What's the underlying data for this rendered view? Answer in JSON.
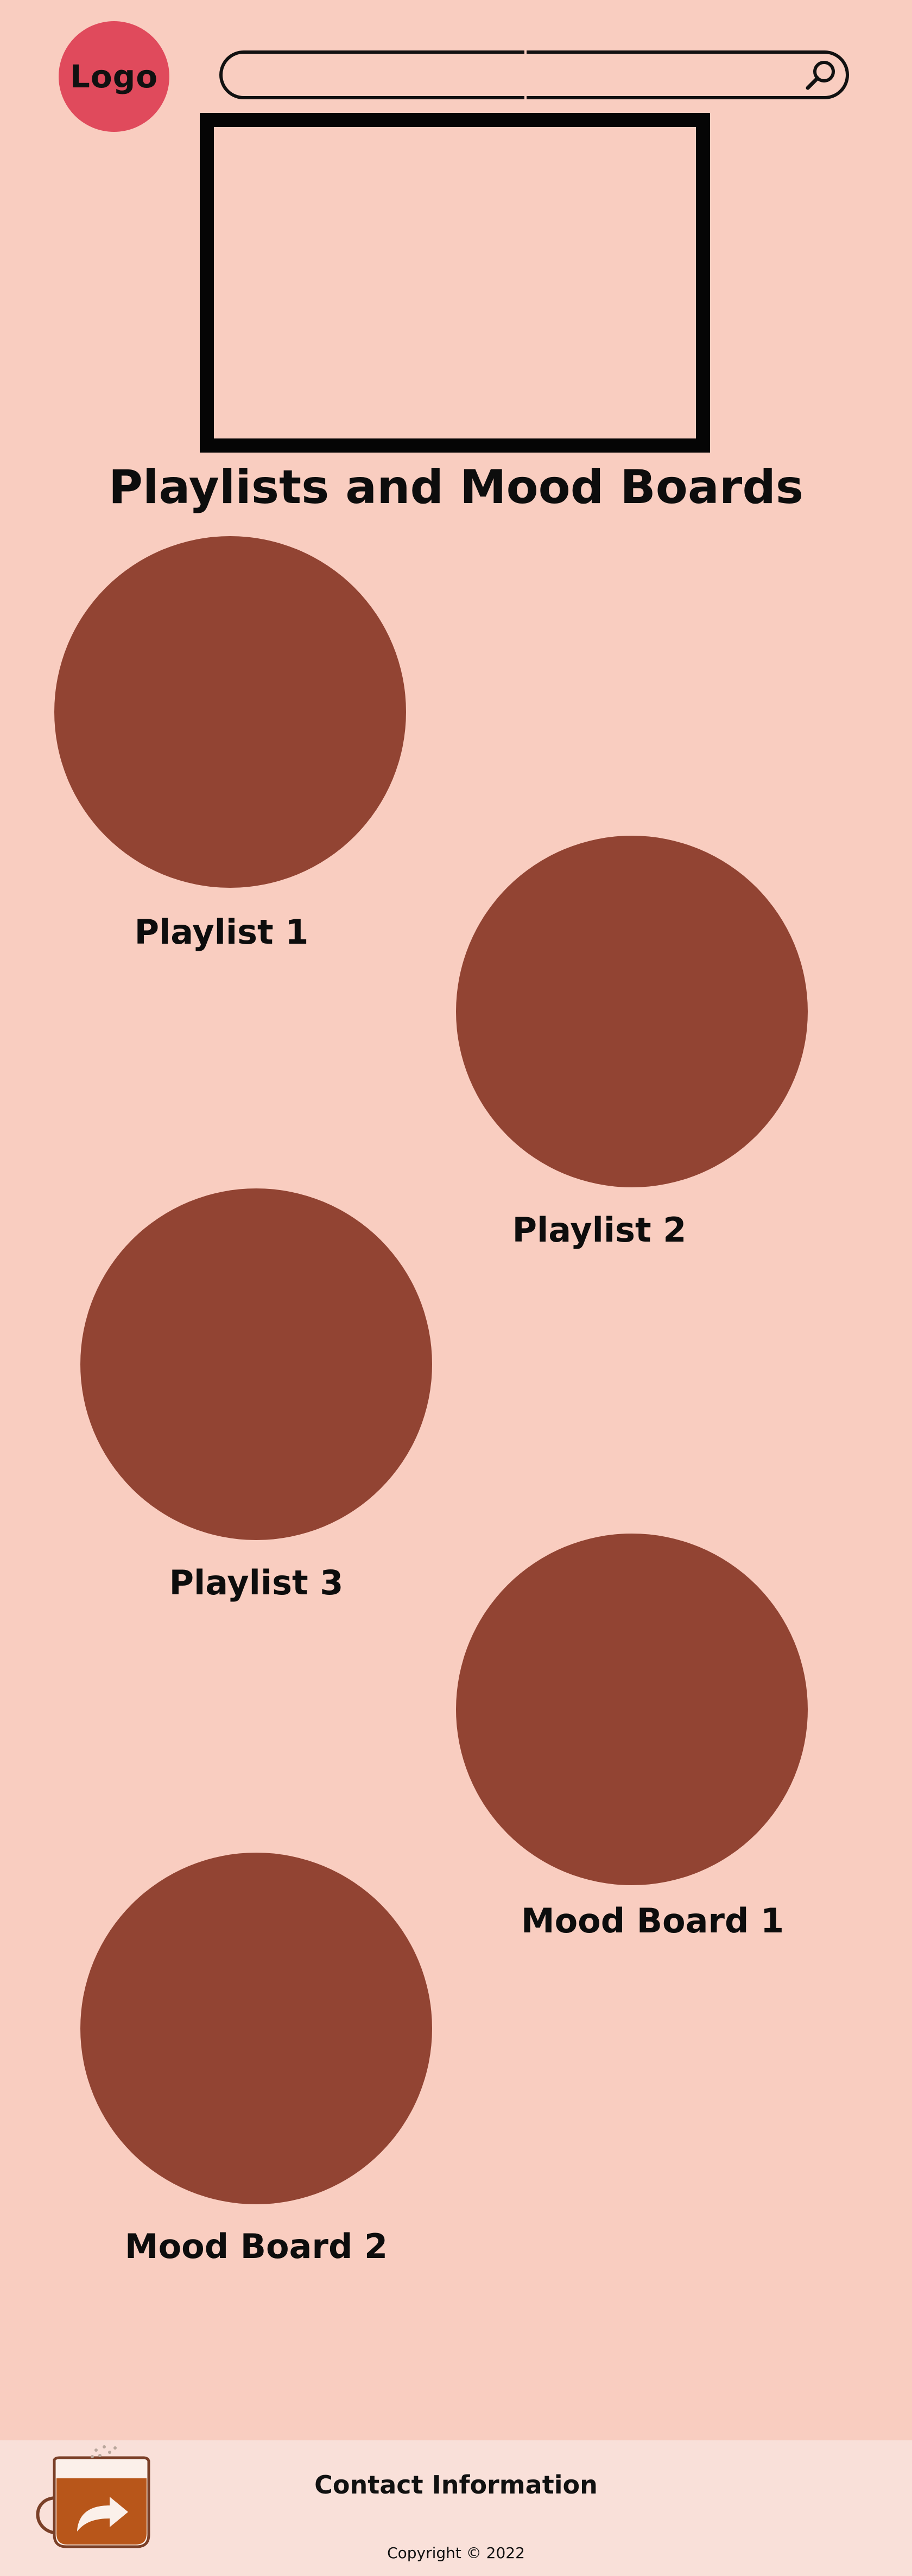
{
  "header": {
    "logo_label": "Logo",
    "search": {
      "value": "",
      "placeholder": "",
      "icon": "search-icon"
    }
  },
  "main": {
    "title": "Playlists and Mood Boards",
    "items": [
      {
        "label": "Playlist 1"
      },
      {
        "label": "Playlist 2"
      },
      {
        "label": "Playlist 3"
      },
      {
        "label": "Mood Board 1"
      },
      {
        "label": "Mood Board 2"
      }
    ]
  },
  "footer": {
    "contact": "Contact Information",
    "copyright": "Copyright © 2022",
    "share_icon": "coffee-mug-share-icon"
  },
  "colors": {
    "background": "#f9cdc0",
    "logo": "#e04a5c",
    "circle": "#924433",
    "footer": "#f9e0d9"
  }
}
